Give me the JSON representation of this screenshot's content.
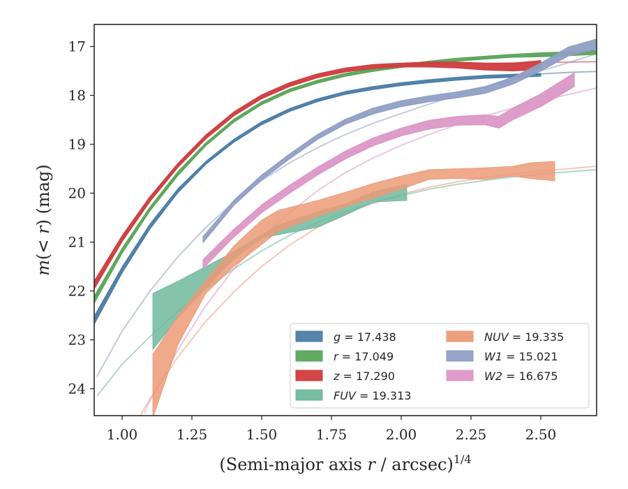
{
  "chart_data": {
    "type": "line",
    "xlabel": "(Semi-major axis r / arcsec)^{1/4}",
    "xlabel_parts": {
      "prefix": "(Semi-major axis ",
      "var": "r",
      "middle": " / arcsec)",
      "power": "1/4"
    },
    "ylabel": "m(< r) (mag)",
    "ylabel_parts": {
      "m": "m",
      "open": "(",
      "lt": "<",
      "r": "r",
      "close": ")",
      "unit": " (mag)"
    },
    "xlim": [
      0.9,
      2.7
    ],
    "ylim": [
      24.55,
      16.55
    ],
    "y_inverted": true,
    "x_ticks": [
      1.0,
      1.25,
      1.5,
      1.75,
      2.0,
      2.25,
      2.5
    ],
    "x_tick_labels": [
      "1.00",
      "1.25",
      "1.50",
      "1.75",
      "2.00",
      "2.25",
      "2.50"
    ],
    "y_ticks": [
      17,
      18,
      19,
      20,
      21,
      22,
      23,
      24
    ],
    "y_tick_labels": [
      "17",
      "18",
      "19",
      "20",
      "21",
      "22",
      "23",
      "24"
    ],
    "grid": false,
    "legend_position": "bottom-right",
    "series": [
      {
        "name": "g = 17.438",
        "legend": {
          "var": "g",
          "value": "17.438"
        },
        "color": "#4c7ea6",
        "band": {
          "x": [
            0.9,
            1.0,
            1.1,
            1.2,
            1.3,
            1.4,
            1.5,
            1.6,
            1.7,
            1.8,
            1.9,
            2.0,
            2.1,
            2.2,
            2.3,
            2.4,
            2.5
          ],
          "y": [
            22.6,
            21.57,
            20.68,
            19.95,
            19.38,
            18.93,
            18.57,
            18.3,
            18.1,
            17.95,
            17.85,
            17.77,
            17.71,
            17.66,
            17.62,
            17.6,
            17.58
          ],
          "width": [
            0.08,
            0.06,
            0.05,
            0.04,
            0.03,
            0.03,
            0.03,
            0.03,
            0.03,
            0.03,
            0.03,
            0.03,
            0.03,
            0.03,
            0.03,
            0.03,
            0.03
          ]
        },
        "model": {
          "x": [
            0.9,
            1.0,
            1.1,
            1.2,
            1.3,
            1.4,
            1.5,
            1.6,
            1.7,
            1.8,
            1.9,
            2.0,
            2.1,
            2.2,
            2.3,
            2.4,
            2.5,
            2.6,
            2.7
          ],
          "y": [
            22.6,
            21.57,
            20.68,
            19.95,
            19.38,
            18.93,
            18.57,
            18.3,
            18.1,
            17.95,
            17.85,
            17.77,
            17.71,
            17.66,
            17.62,
            17.59,
            17.56,
            17.53,
            17.51
          ]
        }
      },
      {
        "name": "r = 17.049",
        "legend": {
          "var": "r",
          "value": "17.049"
        },
        "color": "#5ba55a",
        "band": {
          "x": [
            0.9,
            1.0,
            1.1,
            1.2,
            1.3,
            1.4,
            1.5,
            1.6,
            1.7,
            1.8,
            1.9,
            2.0,
            2.1,
            2.2,
            2.3,
            2.4,
            2.5,
            2.6,
            2.7
          ],
          "y": [
            22.18,
            21.18,
            20.32,
            19.6,
            19.0,
            18.52,
            18.16,
            17.9,
            17.72,
            17.58,
            17.48,
            17.4,
            17.33,
            17.27,
            17.23,
            17.19,
            17.17,
            17.15,
            17.12
          ],
          "width": [
            0.07,
            0.05,
            0.04,
            0.04,
            0.03,
            0.03,
            0.03,
            0.03,
            0.03,
            0.03,
            0.03,
            0.03,
            0.03,
            0.03,
            0.03,
            0.03,
            0.04,
            0.04,
            0.04
          ]
        },
        "model": {
          "x": [
            0.9,
            1.0,
            1.1,
            1.2,
            1.3,
            1.4,
            1.5,
            1.6,
            1.7,
            1.8,
            1.9,
            2.0,
            2.1,
            2.2,
            2.3,
            2.4,
            2.5,
            2.6,
            2.7
          ],
          "y": [
            22.18,
            21.18,
            20.32,
            19.6,
            19.0,
            18.52,
            18.16,
            17.9,
            17.72,
            17.58,
            17.48,
            17.4,
            17.33,
            17.27,
            17.23,
            17.2,
            17.17,
            17.14,
            17.12
          ]
        }
      },
      {
        "name": "z = 17.290",
        "legend": {
          "var": "z",
          "value": "17.290"
        },
        "color": "#d03c3e",
        "band": {
          "x": [
            0.9,
            1.0,
            1.1,
            1.2,
            1.3,
            1.4,
            1.5,
            1.6,
            1.7,
            1.8,
            1.9,
            2.0,
            2.1,
            2.2,
            2.3,
            2.4,
            2.5
          ],
          "y": [
            21.88,
            20.93,
            20.12,
            19.43,
            18.85,
            18.38,
            18.03,
            17.78,
            17.6,
            17.48,
            17.41,
            17.38,
            17.37,
            17.38,
            17.41,
            17.42,
            17.38
          ],
          "width": [
            0.08,
            0.06,
            0.05,
            0.04,
            0.04,
            0.04,
            0.04,
            0.04,
            0.04,
            0.04,
            0.04,
            0.04,
            0.05,
            0.06,
            0.07,
            0.08,
            0.09
          ]
        },
        "model": {
          "x": [
            0.9,
            1.0,
            1.1,
            1.2,
            1.3,
            1.4,
            1.5,
            1.6,
            1.7,
            1.8,
            1.9,
            2.0,
            2.1,
            2.2,
            2.3,
            2.4,
            2.5,
            2.6,
            2.7
          ],
          "y": [
            21.88,
            20.93,
            20.12,
            19.43,
            18.85,
            18.38,
            18.03,
            17.78,
            17.6,
            17.48,
            17.41,
            17.38,
            17.37,
            17.36,
            17.35,
            17.34,
            17.33,
            17.32,
            17.31
          ]
        }
      },
      {
        "name": "FUV = 19.313",
        "legend": {
          "var": "FUV",
          "value": "19.313"
        },
        "color": "#6fb89d",
        "band": {
          "x": [
            1.11,
            1.2,
            1.3,
            1.4,
            1.5,
            1.56,
            1.7,
            1.8,
            1.9,
            2.02
          ],
          "y_top": [
            22.05,
            21.8,
            21.5,
            21.2,
            20.85,
            20.65,
            20.38,
            20.22,
            19.97,
            19.82
          ],
          "y_bottom": [
            23.2,
            22.55,
            21.95,
            21.35,
            20.92,
            20.85,
            20.7,
            20.45,
            20.18,
            20.15
          ]
        },
        "model": {
          "x": [
            0.91,
            1.0,
            1.1,
            1.2,
            1.3,
            1.4,
            1.5,
            1.6,
            1.7,
            1.8,
            1.9,
            2.0,
            2.1,
            2.2,
            2.3,
            2.4,
            2.5,
            2.6,
            2.7
          ],
          "y": [
            24.15,
            23.5,
            22.93,
            22.42,
            21.95,
            21.55,
            21.18,
            20.86,
            20.6,
            20.38,
            20.2,
            20.05,
            19.92,
            19.82,
            19.74,
            19.67,
            19.61,
            19.56,
            19.52
          ]
        }
      },
      {
        "name": "NUV = 19.335",
        "legend": {
          "var": "NUV",
          "value": "19.335"
        },
        "color": "#ec9a77",
        "band": {
          "x": [
            1.11,
            1.2,
            1.3,
            1.4,
            1.5,
            1.56,
            1.7,
            1.8,
            1.9,
            2.0,
            2.1,
            2.2,
            2.3,
            2.4,
            2.46,
            2.55
          ],
          "y_top": [
            23.3,
            22.5,
            21.78,
            21.08,
            20.55,
            20.35,
            20.15,
            19.98,
            19.8,
            19.65,
            19.52,
            19.5,
            19.48,
            19.45,
            19.38,
            19.35
          ],
          "y_bottom": [
            24.6,
            23.1,
            22.05,
            21.5,
            21.05,
            20.78,
            20.48,
            20.28,
            20.1,
            19.92,
            19.72,
            19.7,
            19.72,
            19.65,
            19.7,
            19.75
          ]
        },
        "model": {
          "x": [
            1.05,
            1.1,
            1.2,
            1.3,
            1.4,
            1.5,
            1.6,
            1.7,
            1.8,
            1.9,
            2.0,
            2.1,
            2.2,
            2.3,
            2.4,
            2.5,
            2.6,
            2.7
          ],
          "y": [
            24.7,
            24.2,
            23.35,
            22.62,
            22.02,
            21.5,
            21.06,
            20.7,
            20.42,
            20.2,
            20.02,
            19.88,
            19.77,
            19.68,
            19.61,
            19.55,
            19.5,
            19.45
          ]
        }
      },
      {
        "name": "W1 = 15.021",
        "legend": {
          "var": "W1",
          "value": "15.021"
        },
        "color": "#8f9fc4",
        "band": {
          "x": [
            1.29,
            1.4,
            1.5,
            1.6,
            1.7,
            1.8,
            1.9,
            2.0,
            2.1,
            2.2,
            2.3,
            2.4,
            2.5,
            2.6,
            2.7
          ],
          "y": [
            20.95,
            20.2,
            19.68,
            19.25,
            18.85,
            18.54,
            18.32,
            18.17,
            18.07,
            17.99,
            17.89,
            17.7,
            17.42,
            17.1,
            16.95
          ],
          "width": [
            0.06,
            0.05,
            0.05,
            0.05,
            0.05,
            0.05,
            0.06,
            0.06,
            0.06,
            0.06,
            0.07,
            0.07,
            0.08,
            0.09,
            0.1
          ]
        },
        "model": {
          "x": [
            0.91,
            1.0,
            1.1,
            1.2,
            1.3,
            1.4,
            1.5,
            1.6,
            1.7,
            1.8,
            1.9,
            2.0,
            2.1,
            2.2,
            2.3,
            2.4,
            2.5,
            2.6,
            2.7
          ],
          "y": [
            23.75,
            22.82,
            22.0,
            21.3,
            20.7,
            20.18,
            19.74,
            19.38,
            19.07,
            18.8,
            18.57,
            18.37,
            18.18,
            18.0,
            17.83,
            17.67,
            17.5,
            17.33,
            17.15
          ]
        }
      },
      {
        "name": "W2 = 16.675",
        "legend": {
          "var": "W2",
          "value": "16.675"
        },
        "color": "#dc97c7",
        "band": {
          "x": [
            1.29,
            1.4,
            1.5,
            1.6,
            1.7,
            1.8,
            1.9,
            2.0,
            2.1,
            2.2,
            2.3,
            2.35,
            2.4,
            2.5,
            2.62
          ],
          "y": [
            21.45,
            20.82,
            20.32,
            19.92,
            19.55,
            19.22,
            18.95,
            18.75,
            18.6,
            18.52,
            18.5,
            18.55,
            18.38,
            18.1,
            17.68
          ],
          "width": [
            0.09,
            0.08,
            0.08,
            0.08,
            0.08,
            0.08,
            0.08,
            0.08,
            0.09,
            0.09,
            0.1,
            0.12,
            0.12,
            0.13,
            0.14
          ]
        },
        "model": {
          "x": [
            1.08,
            1.1,
            1.2,
            1.3,
            1.4,
            1.5,
            1.6,
            1.7,
            1.8,
            1.9,
            2.0,
            2.1,
            2.2,
            2.3,
            2.4,
            2.5,
            2.6,
            2.7
          ],
          "y": [
            24.5,
            24.25,
            23.2,
            22.3,
            21.55,
            20.92,
            20.4,
            19.95,
            19.58,
            19.28,
            19.02,
            18.8,
            18.6,
            18.42,
            18.26,
            18.12,
            17.98,
            17.85
          ]
        }
      }
    ]
  }
}
